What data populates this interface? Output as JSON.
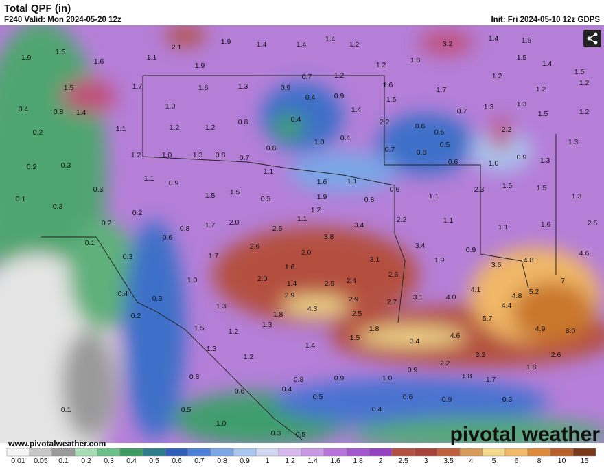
{
  "header": {
    "title": "Total QPF (in)",
    "subtitle": "F240 Valid: Mon 2024-05-20 12z",
    "init": "Init: Fri 2024-05-10 12z GDPS"
  },
  "map": {
    "labels": [
      "1.9",
      "1.5",
      "1.6",
      "1.1",
      "2.1",
      "1.9",
      "1.9",
      "1.4",
      "1.4",
      "1.4",
      "1.2",
      "1.2",
      "1.8",
      "3.2",
      "1.4",
      "1.5",
      "1.5",
      "1.4",
      "1.5",
      "1.2",
      "1.5",
      "1.7",
      "1.6",
      "1.3",
      "0.9",
      "0.7",
      "1.2",
      "1.6",
      "1.7",
      "1.2",
      "1.2",
      "0.4",
      "0.8",
      "1.4",
      "1.0",
      "0.4",
      "0.9",
      "1.4",
      "1.5",
      "0.7",
      "1.3",
      "1.3",
      "1.5",
      "1.2",
      "0.2",
      "1.1",
      "1.2",
      "1.2",
      "0.8",
      "0.4",
      "2.2",
      "0.6",
      "0.5",
      "2.2",
      "0.8",
      "1.0",
      "0.4",
      "0.7",
      "0.8",
      "0.5",
      "1.3",
      "0.2",
      "0.3",
      "1.2",
      "1.0",
      "1.3",
      "0.8",
      "0.7",
      "0.6",
      "1.0",
      "0.9",
      "1.3",
      "1.1",
      "0.9",
      "1.1",
      "1.6",
      "1.1",
      "0.6",
      "2.3",
      "1.5",
      "1.5",
      "0.1",
      "0.3",
      "0.3",
      "1.5",
      "1.5",
      "0.5",
      "1.9",
      "0.8",
      "1.1",
      "1.3",
      "0.2",
      "0.2",
      "0.8",
      "1.7",
      "2.0",
      "2.5",
      "1.1",
      "1.2",
      "3.4",
      "2.2",
      "1.1",
      "1.1",
      "1.6",
      "2.5",
      "0.1",
      "0.6",
      "2.6",
      "3.8",
      "3.4",
      "0.9",
      "0.3",
      "1.7",
      "2.0",
      "3.1",
      "1.9",
      "3.6",
      "4.8",
      "4.6",
      "1.0",
      "2.0",
      "1.6",
      "1.4",
      "2.5",
      "2.4",
      "2.6",
      "7",
      "0.4",
      "0.3",
      "2.9",
      "2.9",
      "2.7",
      "3.1",
      "4.0",
      "4.1",
      "4.8",
      "5.2",
      "4.4",
      "1.3",
      "1.8",
      "4.3",
      "2.5",
      "5.7",
      "0.2",
      "1.5",
      "1.3",
      "1.2",
      "1.8",
      "4.6",
      "4.9",
      "8.0",
      "1.4",
      "1.5",
      "3.4",
      "1.3",
      "1.2",
      "3.2",
      "2.6",
      "2.2",
      "0.9",
      "1.8",
      "0.8",
      "0.8",
      "0.9",
      "1.0",
      "1.8",
      "1.7",
      "0.6",
      "0.4",
      "0.5",
      "0.6",
      "0.9",
      "0.3",
      "0.1",
      "0.5",
      "0.4",
      "1.0",
      "0.3",
      "0.5"
    ]
  },
  "colorbar": {
    "labels": [
      "0.01",
      "0.05",
      "0.1",
      "0.2",
      "0.3",
      "0.4",
      "0.5",
      "0.6",
      "0.7",
      "0.8",
      "0.9",
      "1",
      "1.2",
      "1.4",
      "1.6",
      "1.8",
      "2",
      "2.5",
      "3",
      "3.5",
      "4",
      "5",
      "6",
      "8",
      "10",
      "15"
    ],
    "colors": [
      "#f4f4f4",
      "#c8c8c8",
      "#9a9a9a",
      "#a8dcb4",
      "#6cc08a",
      "#3f9a64",
      "#2f7c8a",
      "#2f5fb8",
      "#4a80d8",
      "#7aa6e6",
      "#a9c6ee",
      "#d2d8f2",
      "#d7b9ee",
      "#c898e6",
      "#b775dc",
      "#a456cf",
      "#9642c0",
      "#b4503f",
      "#a8443a",
      "#c0603c",
      "#d89a5a",
      "#f3da8e",
      "#f0b868",
      "#e08a3c",
      "#b8602a",
      "#7a3a1a"
    ]
  },
  "footer": {
    "website": "www.pivotalweather.com",
    "logo": "pivotal weather"
  }
}
